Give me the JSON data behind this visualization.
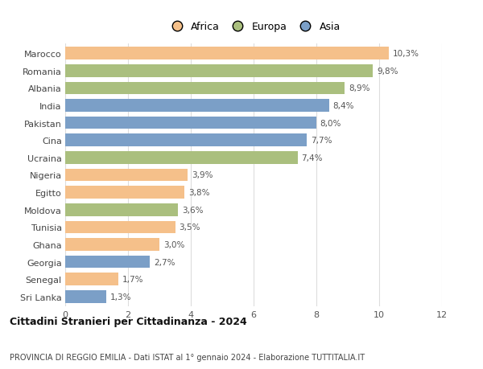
{
  "countries": [
    "Marocco",
    "Romania",
    "Albania",
    "India",
    "Pakistan",
    "Cina",
    "Ucraina",
    "Nigeria",
    "Egitto",
    "Moldova",
    "Tunisia",
    "Ghana",
    "Georgia",
    "Senegal",
    "Sri Lanka"
  ],
  "values": [
    10.3,
    9.8,
    8.9,
    8.4,
    8.0,
    7.7,
    7.4,
    3.9,
    3.8,
    3.6,
    3.5,
    3.0,
    2.7,
    1.7,
    1.3
  ],
  "labels": [
    "10,3%",
    "9,8%",
    "8,9%",
    "8,4%",
    "8,0%",
    "7,7%",
    "7,4%",
    "3,9%",
    "3,8%",
    "3,6%",
    "3,5%",
    "3,0%",
    "2,7%",
    "1,7%",
    "1,3%"
  ],
  "continents": [
    "Africa",
    "Europa",
    "Europa",
    "Asia",
    "Asia",
    "Asia",
    "Europa",
    "Africa",
    "Africa",
    "Europa",
    "Africa",
    "Africa",
    "Asia",
    "Africa",
    "Asia"
  ],
  "colors": {
    "Africa": "#F5C08A",
    "Europa": "#AABF7E",
    "Asia": "#7B9FC7"
  },
  "legend_labels": [
    "Africa",
    "Europa",
    "Asia"
  ],
  "title": "Cittadini Stranieri per Cittadinanza - 2024",
  "subtitle": "PROVINCIA DI REGGIO EMILIA - Dati ISTAT al 1° gennaio 2024 - Elaborazione TUTTITALIA.IT",
  "xlim": [
    0,
    12
  ],
  "xticks": [
    0,
    2,
    4,
    6,
    8,
    10,
    12
  ],
  "background_color": "#ffffff",
  "grid_color": "#dddddd"
}
